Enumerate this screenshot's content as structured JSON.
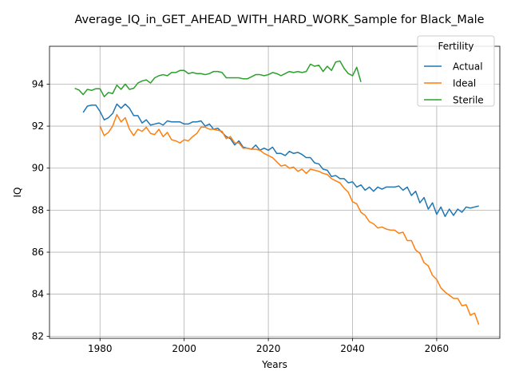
{
  "chart_data": {
    "type": "line",
    "title": "Average_IQ_in_GET_AHEAD_WITH_HARD_WORK_Sample for Black_Male",
    "xlabel": "Years",
    "ylabel": "IQ",
    "xlim": [
      1968,
      2075
    ],
    "ylim": [
      81.9,
      95.8
    ],
    "x_ticks": [
      1980,
      2000,
      2020,
      2040,
      2060
    ],
    "y_ticks": [
      82,
      84,
      86,
      88,
      90,
      92,
      94
    ],
    "grid": true,
    "legend": {
      "title": "Fertility",
      "placement": "upper right"
    },
    "series": [
      {
        "name": "Actual",
        "color": "#1f77b4",
        "x": [
          1976,
          1977,
          1978,
          1979,
          1980,
          1981,
          1982,
          1983,
          1984,
          1985,
          1986,
          1987,
          1988,
          1989,
          1990,
          1991,
          1992,
          1993,
          1994,
          1995,
          1996,
          1997,
          1998,
          1999,
          2000,
          2001,
          2002,
          2003,
          2004,
          2005,
          2006,
          2007,
          2008,
          2009,
          2010,
          2011,
          2012,
          2013,
          2014,
          2015,
          2016,
          2017,
          2018,
          2019,
          2020,
          2021,
          2022,
          2023,
          2024,
          2025,
          2026,
          2027,
          2028,
          2029,
          2030,
          2031,
          2032,
          2033,
          2034,
          2035,
          2036,
          2037,
          2038,
          2039,
          2040,
          2041,
          2042,
          2043,
          2044,
          2045,
          2046,
          2047,
          2048,
          2049,
          2050,
          2051,
          2052,
          2053,
          2054,
          2055,
          2056,
          2057,
          2058,
          2059,
          2060,
          2061,
          2062,
          2063,
          2064,
          2065,
          2066,
          2067,
          2068,
          2069,
          2070
        ],
        "values": [
          92.65,
          92.95,
          93.0,
          93.0,
          92.7,
          92.3,
          92.4,
          92.6,
          93.05,
          92.85,
          93.05,
          92.85,
          92.5,
          92.5,
          92.15,
          92.3,
          92.05,
          92.1,
          92.15,
          92.05,
          92.25,
          92.2,
          92.2,
          92.2,
          92.1,
          92.1,
          92.2,
          92.2,
          92.25,
          92.0,
          92.1,
          91.85,
          91.9,
          91.7,
          91.5,
          91.4,
          91.1,
          91.3,
          91.0,
          90.95,
          90.9,
          91.1,
          90.85,
          90.95,
          90.85,
          91.0,
          90.7,
          90.7,
          90.6,
          90.8,
          90.7,
          90.75,
          90.65,
          90.5,
          90.5,
          90.25,
          90.2,
          89.95,
          89.9,
          89.6,
          89.65,
          89.5,
          89.5,
          89.3,
          89.35,
          89.1,
          89.2,
          88.95,
          89.1,
          88.9,
          89.1,
          89.0,
          89.1,
          89.1,
          89.1,
          89.15,
          88.95,
          89.1,
          88.7,
          88.9,
          88.35,
          88.6,
          88.05,
          88.35,
          87.8,
          88.15,
          87.7,
          88.05,
          87.75,
          88.05,
          87.9,
          88.15,
          88.1,
          88.15,
          88.2
        ]
      },
      {
        "name": "Ideal",
        "color": "#ff7f0e",
        "x": [
          1980,
          1981,
          1982,
          1983,
          1984,
          1985,
          1986,
          1987,
          1988,
          1989,
          1990,
          1991,
          1992,
          1993,
          1994,
          1995,
          1996,
          1997,
          1998,
          1999,
          2000,
          2001,
          2002,
          2003,
          2004,
          2005,
          2006,
          2007,
          2008,
          2009,
          2010,
          2011,
          2012,
          2013,
          2014,
          2015,
          2016,
          2017,
          2018,
          2019,
          2020,
          2021,
          2022,
          2023,
          2024,
          2025,
          2026,
          2027,
          2028,
          2029,
          2030,
          2031,
          2032,
          2033,
          2034,
          2035,
          2036,
          2037,
          2038,
          2039,
          2040,
          2041,
          2042,
          2043,
          2044,
          2045,
          2046,
          2047,
          2048,
          2049,
          2050,
          2051,
          2052,
          2053,
          2054,
          2055,
          2056,
          2057,
          2058,
          2059,
          2060,
          2061,
          2062,
          2063,
          2064,
          2065,
          2066,
          2067,
          2068,
          2069,
          2070
        ],
        "values": [
          92.0,
          91.55,
          91.7,
          92.0,
          92.55,
          92.2,
          92.4,
          91.85,
          91.55,
          91.85,
          91.75,
          91.95,
          91.65,
          91.6,
          91.85,
          91.5,
          91.7,
          91.35,
          91.3,
          91.2,
          91.35,
          91.3,
          91.5,
          91.65,
          91.95,
          91.95,
          91.85,
          91.85,
          91.8,
          91.75,
          91.4,
          91.5,
          91.2,
          91.2,
          90.95,
          90.95,
          90.9,
          90.9,
          90.85,
          90.7,
          90.6,
          90.5,
          90.3,
          90.1,
          90.15,
          90.0,
          90.05,
          89.85,
          89.95,
          89.75,
          89.95,
          89.9,
          89.85,
          89.75,
          89.7,
          89.5,
          89.4,
          89.3,
          89.05,
          88.85,
          88.4,
          88.3,
          87.9,
          87.75,
          87.45,
          87.35,
          87.15,
          87.2,
          87.1,
          87.05,
          87.05,
          86.9,
          86.95,
          86.55,
          86.55,
          86.1,
          85.95,
          85.5,
          85.35,
          84.9,
          84.7,
          84.3,
          84.1,
          83.95,
          83.8,
          83.8,
          83.45,
          83.5,
          83.0,
          83.1,
          82.55
        ]
      },
      {
        "name": "Sterile",
        "color": "#2ca02c",
        "x": [
          1974,
          1975,
          1976,
          1977,
          1978,
          1979,
          1980,
          1981,
          1982,
          1983,
          1984,
          1985,
          1986,
          1987,
          1988,
          1989,
          1990,
          1991,
          1992,
          1993,
          1994,
          1995,
          1996,
          1997,
          1998,
          1999,
          2000,
          2001,
          2002,
          2003,
          2004,
          2005,
          2006,
          2007,
          2008,
          2009,
          2010,
          2011,
          2012,
          2013,
          2014,
          2015,
          2016,
          2017,
          2018,
          2019,
          2020,
          2021,
          2022,
          2023,
          2024,
          2025,
          2026,
          2027,
          2028,
          2029,
          2030,
          2031,
          2032,
          2033,
          2034,
          2035,
          2036,
          2037,
          2038,
          2039,
          2040,
          2041,
          2042
        ],
        "values": [
          93.8,
          93.72,
          93.5,
          93.75,
          93.7,
          93.78,
          93.78,
          93.4,
          93.6,
          93.55,
          93.95,
          93.75,
          94.0,
          93.75,
          93.8,
          94.05,
          94.15,
          94.2,
          94.05,
          94.3,
          94.4,
          94.45,
          94.4,
          94.55,
          94.55,
          94.65,
          94.65,
          94.5,
          94.55,
          94.5,
          94.5,
          94.45,
          94.5,
          94.6,
          94.6,
          94.55,
          94.3,
          94.3,
          94.3,
          94.3,
          94.25,
          94.25,
          94.35,
          94.45,
          94.45,
          94.4,
          94.45,
          94.55,
          94.5,
          94.4,
          94.5,
          94.6,
          94.55,
          94.6,
          94.55,
          94.6,
          94.95,
          94.85,
          94.9,
          94.6,
          94.85,
          94.65,
          95.05,
          95.1,
          94.75,
          94.5,
          94.4,
          94.8,
          94.1
        ]
      }
    ]
  }
}
